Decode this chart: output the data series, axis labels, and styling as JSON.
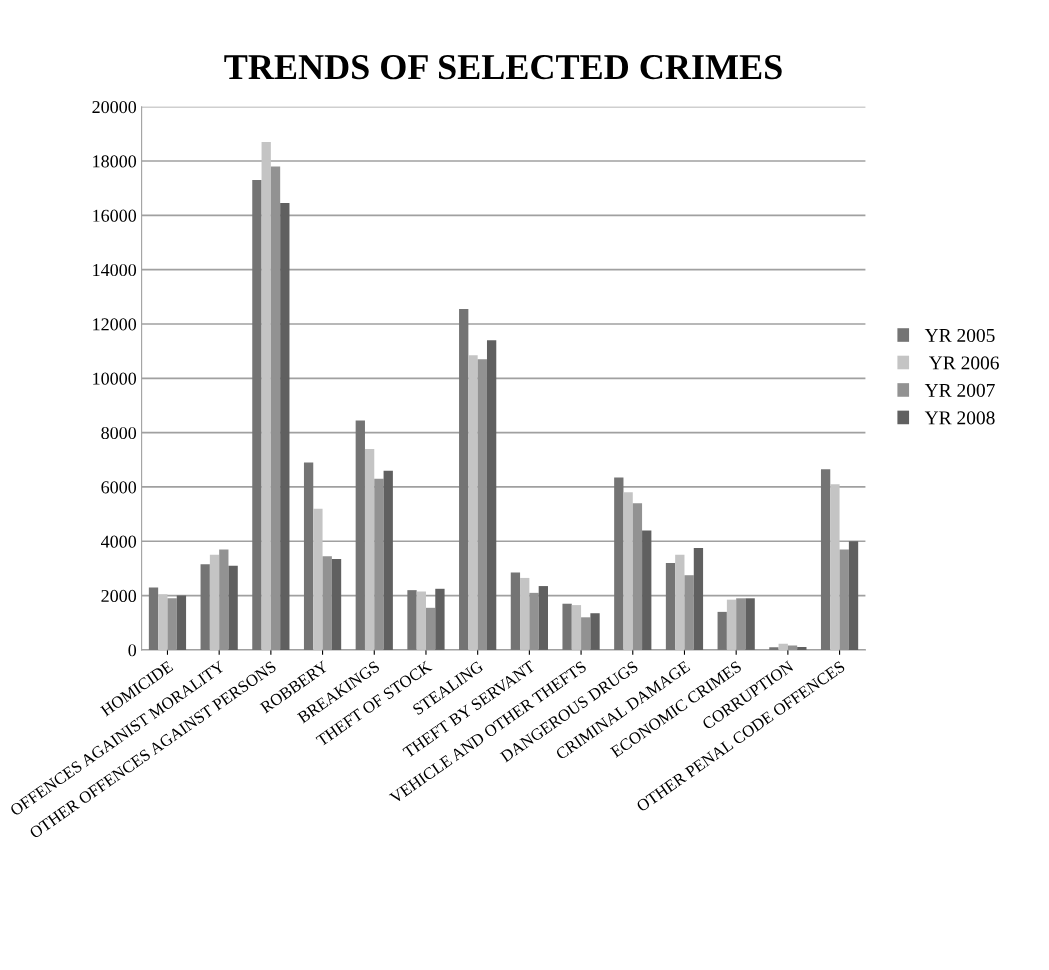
{
  "chart_data": {
    "type": "bar",
    "title": "TRENDS OF SELECTED CRIMES",
    "categories": [
      "HOMICIDE",
      "OFFENCES AGAINIST MORALITY",
      "OTHER OFFENCES AGAINST PERSONS",
      "ROBBERY",
      "BREAKINGS",
      "THEFT OF STOCK",
      "STEALING",
      "THEFT BY SERVANT",
      "VEHICLE AND OTHER THEFTS",
      "DANGEROUS DRUGS",
      "CRIMINAL DAMAGE",
      "ECONOMIC CRIMES",
      "CORRUPTION",
      "OTHER PENAL CODE OFFENCES"
    ],
    "series": [
      {
        "name": "YR 2005",
        "color": "#747474",
        "values": [
          2300,
          3150,
          17300,
          6900,
          8450,
          2200,
          12550,
          2850,
          1700,
          6350,
          3200,
          1400,
          100,
          6650
        ]
      },
      {
        "name": " YR 2006",
        "color": "#c4c4c4",
        "values": [
          2050,
          3500,
          18700,
          5200,
          7400,
          2150,
          10850,
          2650,
          1650,
          5800,
          3500,
          1850,
          230,
          6100
        ]
      },
      {
        "name": "YR 2007",
        "color": "#929292",
        "values": [
          1900,
          3700,
          17800,
          3450,
          6300,
          1550,
          10700,
          2100,
          1200,
          5400,
          2750,
          1900,
          160,
          3700
        ]
      },
      {
        "name": "YR 2008",
        "color": "#606060",
        "values": [
          2000,
          3100,
          16450,
          3350,
          6600,
          2250,
          11400,
          2350,
          1350,
          4400,
          3750,
          1900,
          110,
          4000
        ]
      }
    ],
    "ylim": [
      0,
      20000
    ],
    "yticks": [
      0,
      2000,
      4000,
      6000,
      8000,
      10000,
      12000,
      14000,
      16000,
      18000,
      20000
    ],
    "grid": "y",
    "legend": "right"
  }
}
